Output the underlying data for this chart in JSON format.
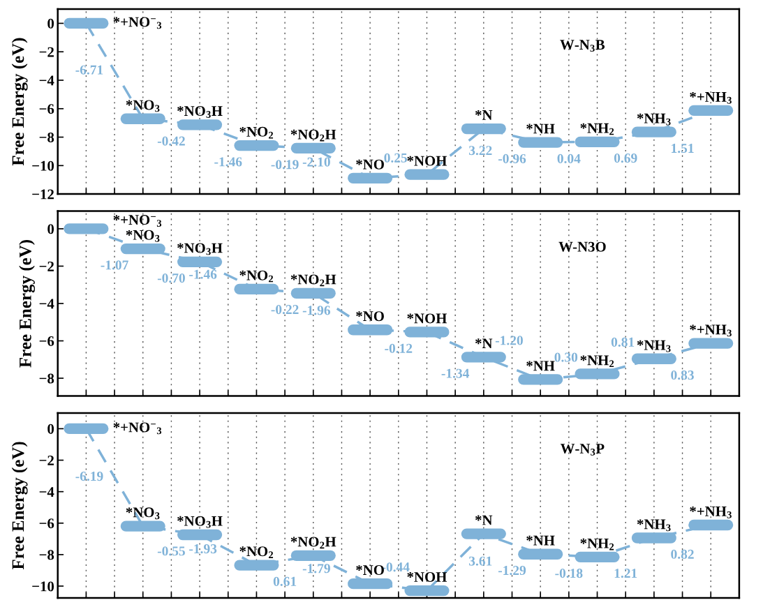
{
  "chart_data": [
    {
      "type": "step",
      "title": "W-N$_{3}$B",
      "ylabel": "Free Energy (eV)",
      "categories": [
        "*+NO$^{−}$$_{3}$",
        "*NO$_{3}$",
        "*NO$_{3}$H",
        "*NO$_{2}$",
        "*NO$_{2}$H",
        "*NO",
        "*NOH",
        "*N",
        "*NH",
        "*NH$_{2}$",
        "*NH$_{3}$",
        "*+NH$_{3}$"
      ],
      "series": [
        {
          "color": "#7fb2d8",
          "values": [
            0,
            -6.71,
            -7.13,
            -8.59,
            -8.78,
            -10.88,
            -10.63,
            -7.41,
            -8.37,
            -8.33,
            -7.64,
            -6.13
          ]
        }
      ],
      "annotations": [
        "-6.71",
        "-0.42",
        "-1.46",
        "-0.19",
        "-2.10",
        "0.25",
        "3.22",
        "-0.96",
        "0.04",
        "0.69",
        "1.51"
      ],
      "ylim": [
        -12,
        1
      ],
      "yticks": [
        {
          "value": 0,
          "label": "0"
        },
        {
          "value": -2,
          "label": "−2"
        },
        {
          "value": -4,
          "label": "−4"
        },
        {
          "value": -6,
          "label": "−6"
        },
        {
          "value": -8,
          "label": "−8"
        },
        {
          "value": -10,
          "label": "−10"
        },
        {
          "value": -12,
          "label": "−12"
        }
      ],
      "grid": "x",
      "tick_labels": "y",
      "line_style": "dashed"
    },
    {
      "type": "step",
      "title": "W-N3O",
      "ylabel": "Free Energy (eV)",
      "categories": [
        "*+NO$^{−}$$_{3}$",
        "*NO$_{3}$",
        "*NO$_{3}$H",
        "*NO$_{2}$",
        "*NO$_{2}$H",
        "*NO",
        "*NOH",
        "*N",
        "*NH",
        "*NH$_{2}$",
        "*NH$_{3}$",
        "*+NH$_{3}$"
      ],
      "series": [
        {
          "color": "#7fb2d8",
          "values": [
            0,
            -1.07,
            -1.77,
            -3.23,
            -3.45,
            -5.41,
            -5.53,
            -6.87,
            -8.07,
            -7.77,
            -6.96,
            -6.13
          ]
        }
      ],
      "annotations": [
        "-1.07",
        "-0.70",
        "-1.46",
        "-0.22",
        "-1.96",
        "-0.12",
        "-1.34",
        "-1.20",
        "0.30",
        "0.81",
        "0.83"
      ],
      "ylim": [
        -8.95,
        0.95
      ],
      "yticks": [
        {
          "value": 0,
          "label": "0"
        },
        {
          "value": -2,
          "label": "−2"
        },
        {
          "value": -4,
          "label": "−4"
        },
        {
          "value": -6,
          "label": "−6"
        },
        {
          "value": -8,
          "label": "−8"
        }
      ],
      "grid": "x",
      "tick_labels": "y",
      "line_style": "dashed"
    },
    {
      "type": "step",
      "title": "W-N$_{3}$P",
      "ylabel": "Free Energy (eV)",
      "categories": [
        "*+NO$^{−}$$_{3}$",
        "*NO$_{3}$",
        "*NO$_{3}$H",
        "*NO$_{2}$",
        "*NO$_{2}$H",
        "*NO",
        "*NOH",
        "*N",
        "*NH",
        "*NH$_{2}$",
        "*NH$_{3}$",
        "*+NH$_{3}$"
      ],
      "series": [
        {
          "color": "#7fb2d8",
          "values": [
            0,
            -6.19,
            -6.74,
            -8.67,
            -8.06,
            -9.85,
            -10.29,
            -6.68,
            -7.97,
            -8.15,
            -6.94,
            -6.12
          ]
        }
      ],
      "annotations": [
        "-6.19",
        "-0.55",
        "-1.93",
        "0.61",
        "-1.79",
        "-0.44",
        "3.61",
        "-1.29",
        "-0.18",
        "1.21",
        "0.82"
      ],
      "ylim": [
        -10.75,
        1
      ],
      "yticks": [
        {
          "value": 0,
          "label": "0"
        },
        {
          "value": -2,
          "label": "−2"
        },
        {
          "value": -4,
          "label": "−4"
        },
        {
          "value": -6,
          "label": "−6"
        },
        {
          "value": -8,
          "label": "−8"
        },
        {
          "value": -10,
          "label": "−10"
        }
      ],
      "grid": "x",
      "tick_labels": "y",
      "line_style": "dashed"
    }
  ]
}
